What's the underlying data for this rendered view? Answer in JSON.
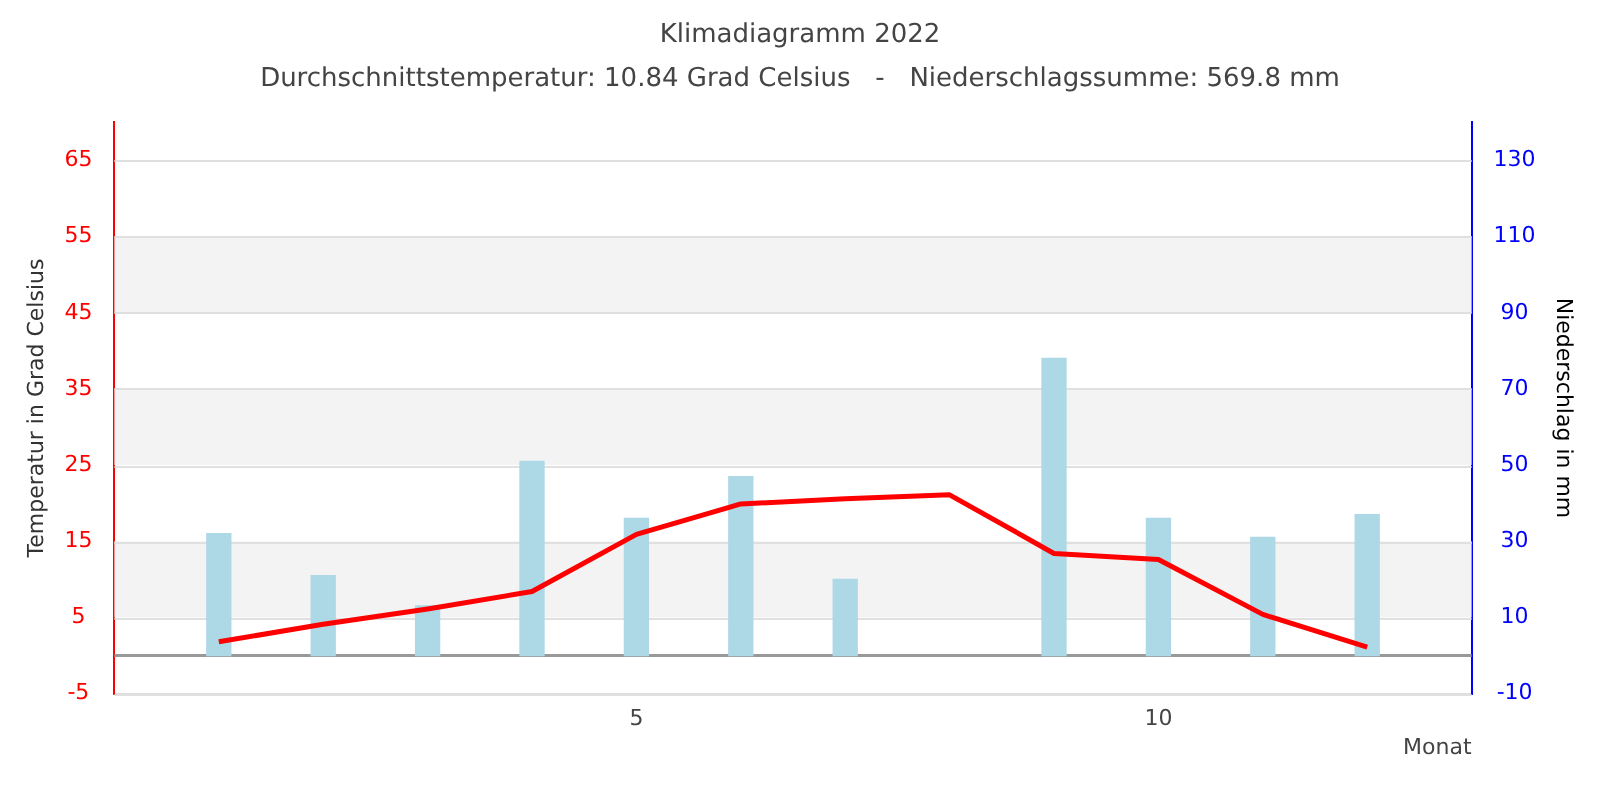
{
  "chart_data": {
    "type": "bar",
    "title": "Klimadiagramm 2022",
    "subtitle": "Durchschnittstemperatur: 10.84 Grad Celsius   -   Niederschlagssumme: 569.8 mm",
    "xlabel": "Monat",
    "ylabel": "Temperatur in Grad Celsius",
    "y2label": "Niederschlag in mm",
    "x": [
      1,
      2,
      3,
      4,
      5,
      6,
      7,
      8,
      9,
      10,
      11,
      12
    ],
    "series": [
      {
        "axis": "y2",
        "color": "#add8e6",
        "values": [
          32,
          21,
          13,
          51,
          36,
          47,
          20,
          null,
          78,
          36,
          31,
          37
        ]
      },
      {
        "type": "line",
        "color": "#ff0000",
        "values": [
          1.8,
          4.1,
          6.1,
          8.4,
          15.9,
          19.9,
          20.6,
          21.1,
          13.4,
          12.6,
          5.4,
          1.1
        ]
      }
    ],
    "xlim": [
      0,
      13
    ],
    "xticks": [
      5,
      10
    ],
    "ylim": [
      -5,
      70
    ],
    "yticks": [
      -5,
      5,
      15,
      25,
      35,
      45,
      55,
      65
    ],
    "y2lim": [
      -10,
      140
    ],
    "y2ticks": [
      -10,
      10,
      30,
      50,
      70,
      90,
      110,
      130
    ],
    "bands": [
      {
        "axis": "y",
        "from": 5,
        "to": 15,
        "color": "#f3f3f3"
      },
      {
        "axis": "y",
        "from": 25,
        "to": 35,
        "color": "#f3f3f3"
      },
      {
        "axis": "y",
        "from": 45,
        "to": 55,
        "color": "#f3f3f3"
      }
    ],
    "ref_lines": [
      {
        "axis": "y",
        "value": 0,
        "color": "#999999"
      }
    ],
    "grid": "y",
    "legend": false,
    "marker": "none",
    "line_style": "solid"
  }
}
